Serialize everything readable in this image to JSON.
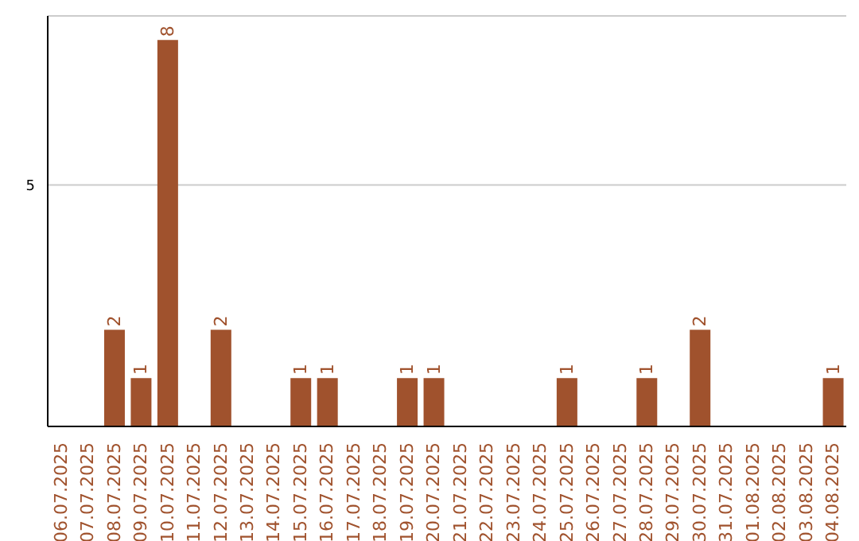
{
  "chart_data": {
    "type": "bar",
    "categories": [
      "06.07.2025",
      "07.07.2025",
      "08.07.2025",
      "09.07.2025",
      "10.07.2025",
      "11.07.2025",
      "12.07.2025",
      "13.07.2025",
      "14.07.2025",
      "15.07.2025",
      "16.07.2025",
      "17.07.2025",
      "18.07.2025",
      "19.07.2025",
      "20.07.2025",
      "21.07.2025",
      "22.07.2025",
      "23.07.2025",
      "24.07.2025",
      "25.07.2025",
      "26.07.2025",
      "27.07.2025",
      "28.07.2025",
      "29.07.2025",
      "30.07.2025",
      "31.07.2025",
      "01.08.2025",
      "02.08.2025",
      "03.08.2025",
      "04.08.2025"
    ],
    "values": [
      0,
      0,
      2,
      1,
      8,
      0,
      2,
      0,
      0,
      1,
      1,
      0,
      0,
      1,
      1,
      0,
      0,
      0,
      0,
      1,
      0,
      0,
      1,
      0,
      2,
      0,
      0,
      0,
      0,
      1
    ],
    "value_labels": [
      null,
      null,
      "2",
      "1",
      "8",
      null,
      "2",
      null,
      null,
      "1",
      "1",
      null,
      null,
      "1",
      "1",
      null,
      null,
      null,
      null,
      "1",
      null,
      null,
      "1",
      null,
      "2",
      null,
      null,
      null,
      null,
      "1"
    ],
    "color": "#a0522d",
    "ylim": [
      0,
      8.5
    ],
    "yticks": [
      5
    ],
    "grid": "y"
  }
}
